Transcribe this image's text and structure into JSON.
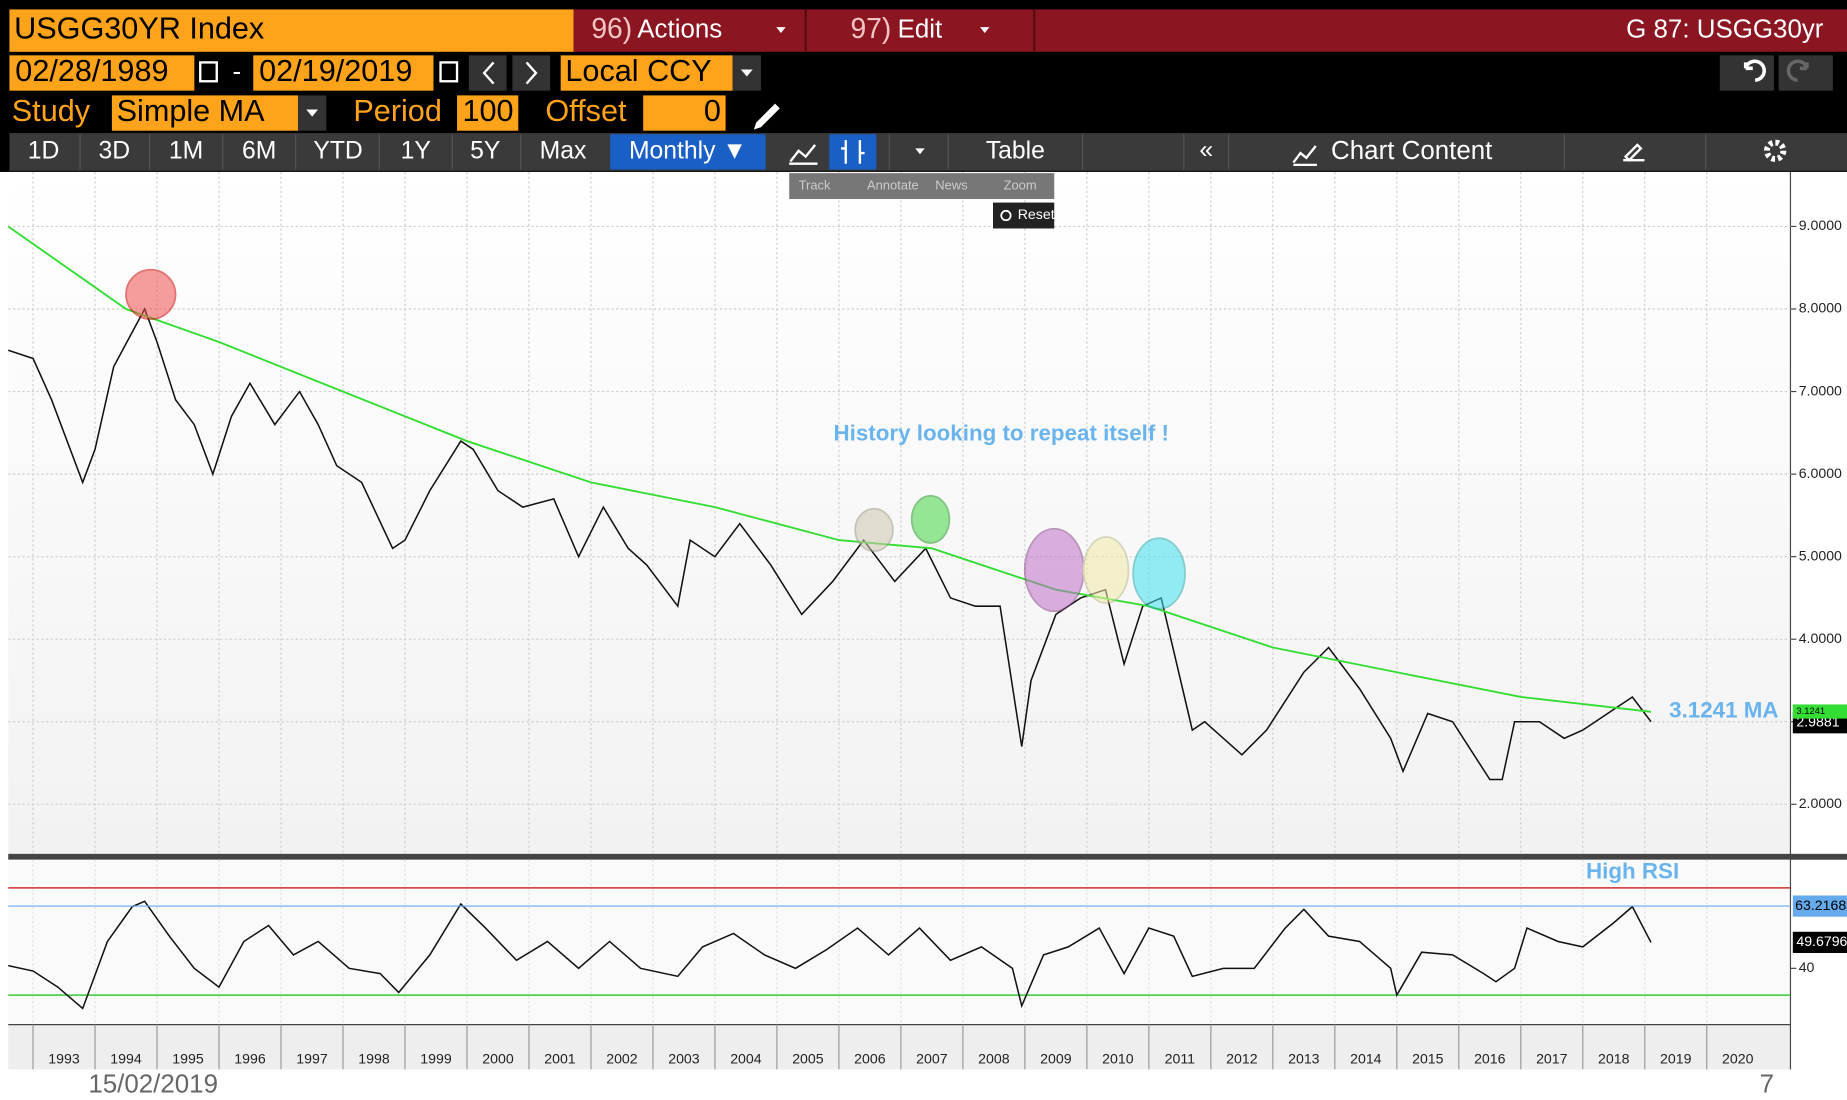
{
  "header": {
    "ticker": "USGG30YR Index",
    "actions_num": "96)",
    "actions": "Actions",
    "edit_num": "97)",
    "edit": "Edit",
    "page": "G 87: USGG30yr"
  },
  "dates": {
    "start": "02/28/1989",
    "separator": "-",
    "end": "02/19/2019",
    "currency": "Local CCY"
  },
  "study": {
    "label": "Study",
    "name": "Simple MA",
    "period_label": "Period",
    "period": 100,
    "offset_label": "Offset",
    "offset": 0
  },
  "tabs": [
    "1D",
    "3D",
    "1M",
    "6M",
    "YTD",
    "1Y",
    "5Y",
    "Max"
  ],
  "toolbar": {
    "monthly": "Monthly ▼",
    "table": "Table",
    "chart_content": "Chart Content",
    "tools": [
      "Track",
      "Annotate",
      "News",
      "Zoom"
    ],
    "reset": "Reset"
  },
  "footer": {
    "date": "15/02/2019",
    "page": 7
  },
  "chart_data": [
    {
      "type": "line",
      "annotation": "History looking to repeat itself !",
      "ma_annotation": "3.1241 MA",
      "xlim": [
        1992.6,
        2021.35
      ],
      "ylim": [
        1.4,
        9.66
      ],
      "xticks": [
        1993,
        1994,
        1995,
        1996,
        1997,
        1998,
        1999,
        2000,
        2001,
        2002,
        2003,
        2004,
        2005,
        2006,
        2007,
        2008,
        2009,
        2010,
        2011,
        2012,
        2013,
        2014,
        2015,
        2016,
        2017,
        2018,
        2019,
        2020
      ],
      "yticks": [
        {
          "value": 2,
          "label": "2.0000"
        },
        {
          "value": 3,
          "label": "3.0000"
        },
        {
          "value": 4,
          "label": "4.0000"
        },
        {
          "value": 5,
          "label": "5.0000"
        },
        {
          "value": 6,
          "label": "6.0000"
        },
        {
          "value": 7,
          "label": "7.0000"
        },
        {
          "value": 8,
          "label": "8.0000"
        },
        {
          "value": 9,
          "label": "9.0000"
        }
      ],
      "grid": true,
      "series": [
        {
          "name": "USGG30YR",
          "color": "#111111",
          "last": 2.9881,
          "x": [
            1992.6,
            1993.0,
            1993.3,
            1993.8,
            1994.0,
            1994.3,
            1994.8,
            1995.0,
            1995.3,
            1995.6,
            1995.9,
            1996.2,
            1996.5,
            1996.9,
            1997.3,
            1997.6,
            1997.9,
            1998.3,
            1998.8,
            1999.0,
            1999.4,
            1999.9,
            2000.1,
            2000.5,
            2000.9,
            2001.4,
            2001.8,
            2002.2,
            2002.6,
            2002.9,
            2003.4,
            2003.6,
            2004.0,
            2004.4,
            2004.9,
            2005.4,
            2005.9,
            2006.4,
            2006.9,
            2007.4,
            2007.8,
            2008.2,
            2008.6,
            2008.95,
            2009.1,
            2009.5,
            2009.9,
            2010.3,
            2010.6,
            2010.9,
            2011.2,
            2011.7,
            2011.9,
            2012.5,
            2012.9,
            2013.5,
            2013.9,
            2014.4,
            2014.9,
            2015.1,
            2015.5,
            2015.9,
            2016.5,
            2016.7,
            2016.9,
            2017.3,
            2017.7,
            2018.0,
            2018.4,
            2018.8,
            2019.1
          ],
          "values": [
            7.5,
            7.4,
            6.9,
            5.9,
            6.3,
            7.3,
            8.0,
            7.6,
            6.9,
            6.6,
            6.0,
            6.7,
            7.1,
            6.6,
            7.0,
            6.6,
            6.1,
            5.9,
            5.1,
            5.2,
            5.8,
            6.4,
            6.3,
            5.8,
            5.6,
            5.7,
            5.0,
            5.6,
            5.1,
            4.9,
            4.4,
            5.2,
            5.0,
            5.4,
            4.9,
            4.3,
            4.7,
            5.2,
            4.7,
            5.1,
            4.5,
            4.4,
            4.4,
            2.7,
            3.5,
            4.3,
            4.5,
            4.6,
            3.7,
            4.4,
            4.5,
            2.9,
            3.0,
            2.6,
            2.9,
            3.6,
            3.9,
            3.4,
            2.8,
            2.4,
            3.1,
            3.0,
            2.3,
            2.3,
            3.0,
            3.0,
            2.8,
            2.9,
            3.1,
            3.3,
            3.0
          ]
        },
        {
          "name": "Simple MA",
          "color": "#33dd33",
          "last": 3.1241,
          "x": [
            1992.6,
            1994.5,
            1996,
            1998,
            2000,
            2002,
            2004,
            2006,
            2007.5,
            2009.5,
            2011,
            2013,
            2015,
            2017,
            2019.1
          ],
          "values": [
            9.0,
            8.0,
            7.6,
            7.0,
            6.4,
            5.9,
            5.6,
            5.2,
            5.1,
            4.6,
            4.4,
            3.9,
            3.6,
            3.3,
            3.12
          ]
        }
      ]
    },
    {
      "type": "line",
      "annotation": "High RSI",
      "xlim": [
        1992.6,
        2021.35
      ],
      "ylim": [
        19,
        80.5
      ],
      "yticks": [
        40
      ],
      "levels": [
        {
          "value": 70,
          "color": "#d03030"
        },
        {
          "value": 30,
          "color": "#33cc33"
        }
      ],
      "series": [
        {
          "name": "RSI",
          "color": "#111111",
          "last": 49.6796,
          "ref": 63.2168,
          "ref_color": "#66aaee",
          "x": [
            1992.6,
            1993.0,
            1993.4,
            1993.8,
            1994.2,
            1994.6,
            1994.8,
            1995.2,
            1995.6,
            1996.0,
            1996.4,
            1996.8,
            1997.2,
            1997.6,
            1998.1,
            1998.6,
            1998.9,
            1999.4,
            1999.9,
            2000.3,
            2000.8,
            2001.3,
            2001.8,
            2002.3,
            2002.8,
            2003.4,
            2003.8,
            2004.3,
            2004.8,
            2005.3,
            2005.8,
            2006.3,
            2006.8,
            2007.3,
            2007.8,
            2008.3,
            2008.8,
            2008.95,
            2009.3,
            2009.7,
            2010.2,
            2010.6,
            2011.0,
            2011.4,
            2011.7,
            2012.2,
            2012.7,
            2013.2,
            2013.5,
            2013.9,
            2014.4,
            2014.9,
            2015.0,
            2015.4,
            2015.9,
            2016.4,
            2016.6,
            2016.9,
            2017.1,
            2017.6,
            2018.0,
            2018.5,
            2018.8,
            2019.1
          ],
          "values": [
            41,
            39,
            33,
            25,
            50,
            63,
            65,
            52,
            40,
            33,
            50,
            56,
            45,
            50,
            40,
            38,
            31,
            45,
            64,
            55,
            43,
            50,
            40,
            50,
            40,
            37,
            48,
            53,
            45,
            40,
            47,
            55,
            45,
            55,
            43,
            48,
            40,
            26,
            45,
            48,
            55,
            38,
            55,
            52,
            37,
            40,
            40,
            55,
            62,
            52,
            50,
            40,
            30,
            46,
            45,
            38,
            35,
            40,
            55,
            50,
            48,
            57,
            63,
            49.68
          ]
        }
      ]
    }
  ]
}
